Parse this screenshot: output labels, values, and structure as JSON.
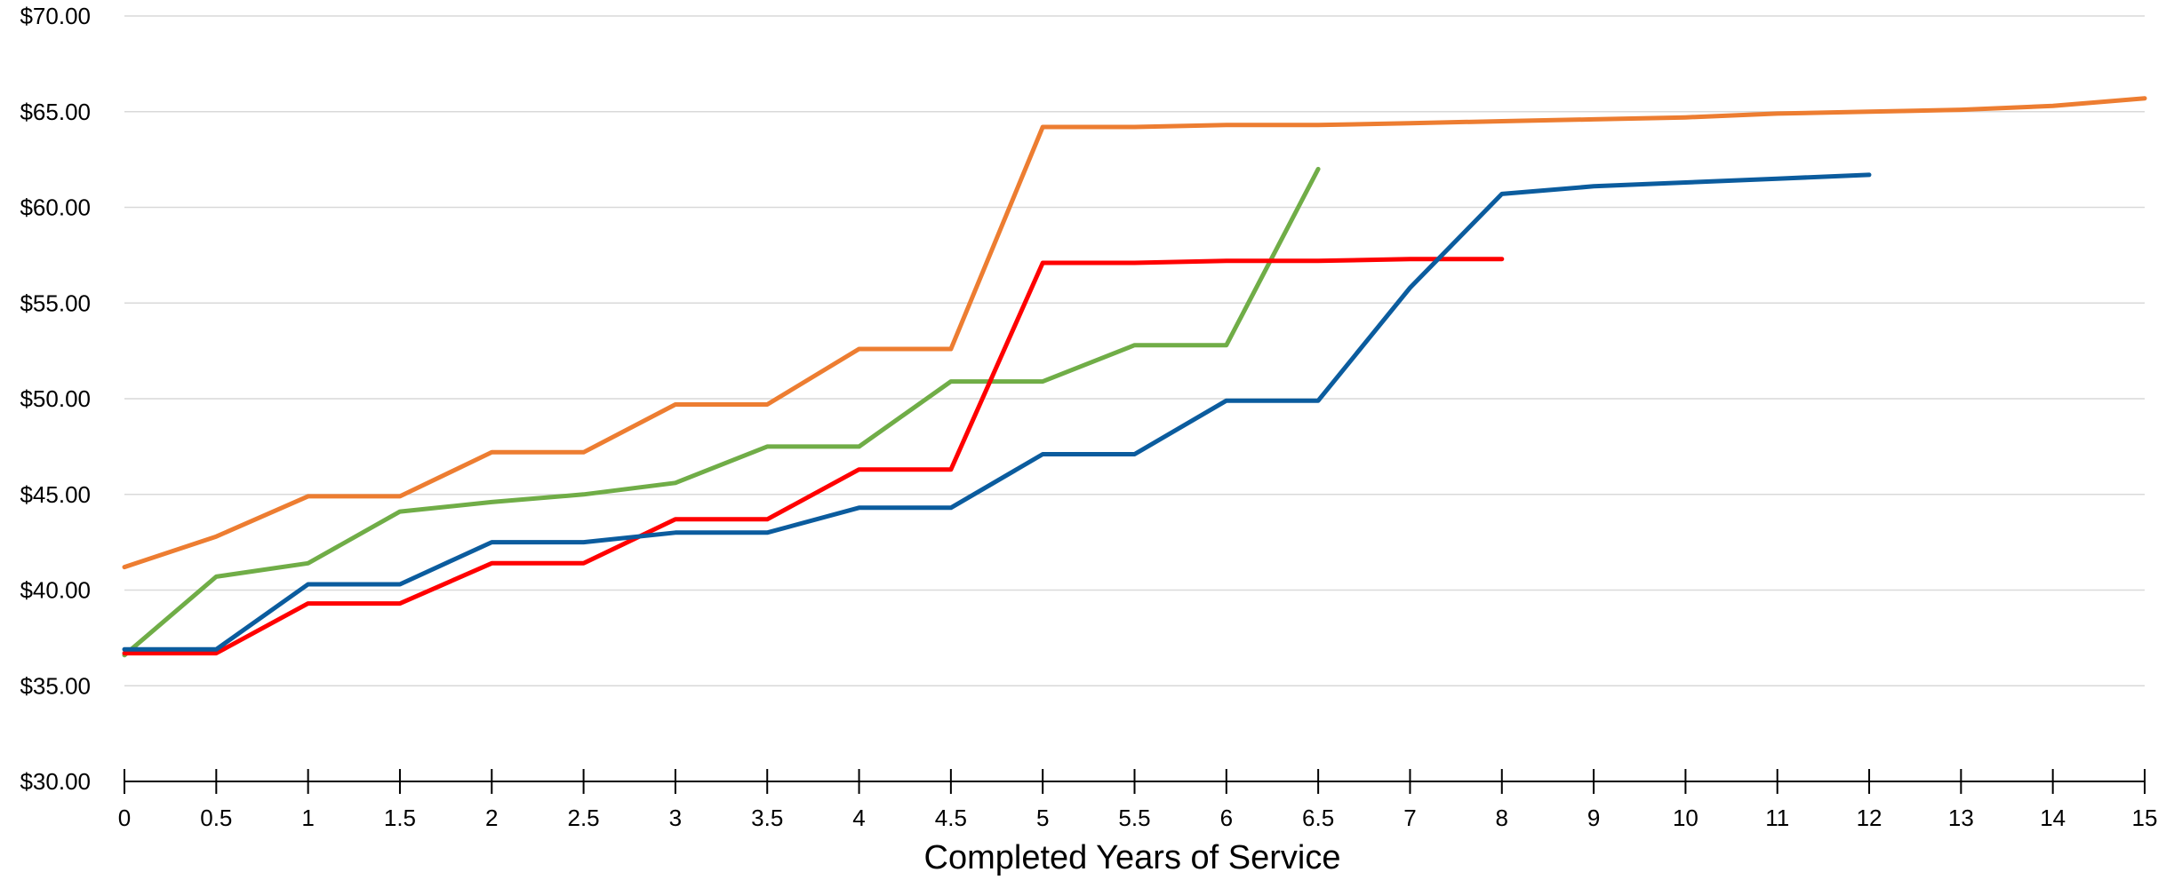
{
  "chart_data": {
    "type": "line",
    "title": "",
    "xlabel": "Completed Years of Service",
    "ylabel": "",
    "x_categories": [
      "0",
      "0.5",
      "1",
      "1.5",
      "2",
      "2.5",
      "3",
      "3.5",
      "4",
      "4.5",
      "5",
      "5.5",
      "6",
      "6.5",
      "7",
      "8",
      "9",
      "10",
      "11",
      "12",
      "13",
      "14",
      "15"
    ],
    "y_ticks": [
      "$30.00",
      "$35.00",
      "$40.00",
      "$45.00",
      "$50.00",
      "$55.00",
      "$60.00",
      "$65.00",
      "$70.00"
    ],
    "ylim": [
      30,
      70
    ],
    "y_tick_step": 5,
    "grid": {
      "horizontal": true,
      "vertical": false
    },
    "legend": "none",
    "series": [
      {
        "color": "#ED7D31",
        "values": [
          41.2,
          42.8,
          44.9,
          44.9,
          47.2,
          47.2,
          49.7,
          49.7,
          52.6,
          52.6,
          64.2,
          64.2,
          64.3,
          64.3,
          64.4,
          64.5,
          64.6,
          64.7,
          64.9,
          65.0,
          65.1,
          65.3,
          65.7
        ]
      },
      {
        "color": "#70AD47",
        "values": [
          36.6,
          40.7,
          41.4,
          44.1,
          44.6,
          45.0,
          45.6,
          47.5,
          47.5,
          50.9,
          50.9,
          52.8,
          52.8,
          62.0,
          null,
          null,
          null,
          null,
          null,
          null,
          null,
          null,
          null
        ]
      },
      {
        "color": "#FF0000",
        "values": [
          36.7,
          36.7,
          39.3,
          39.3,
          41.4,
          41.4,
          43.7,
          43.7,
          46.3,
          46.3,
          57.1,
          57.1,
          57.2,
          57.2,
          57.3,
          57.3,
          null,
          null,
          null,
          null,
          null,
          null,
          null
        ]
      },
      {
        "color": "#0B5C9E",
        "values": [
          36.9,
          36.9,
          40.3,
          40.3,
          42.5,
          42.5,
          43.0,
          43.0,
          44.3,
          44.3,
          47.1,
          47.1,
          49.9,
          49.9,
          55.8,
          60.7,
          61.1,
          61.3,
          61.5,
          61.7,
          null,
          null,
          null
        ]
      }
    ]
  }
}
